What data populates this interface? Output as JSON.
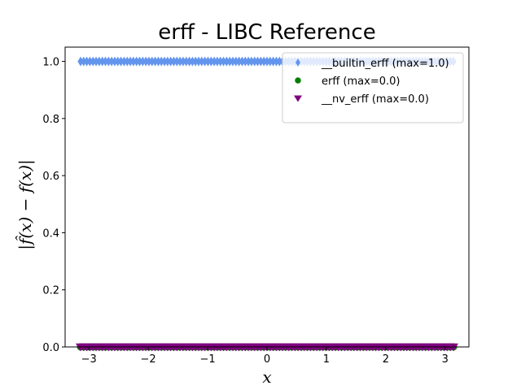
{
  "chart_data": {
    "type": "scatter",
    "title": "erff - LIBC Reference",
    "xlabel": "x",
    "ylabel": "|f̂(x) − f(x)|",
    "xlim": [
      -3.4,
      3.4
    ],
    "ylim": [
      0,
      1.05
    ],
    "x_ticks": [
      -3,
      -2,
      -1,
      0,
      1,
      2,
      3
    ],
    "x_tick_labels": [
      "−3",
      "−2",
      "−1",
      "0",
      "1",
      "2",
      "3"
    ],
    "y_ticks": [
      0.0,
      0.2,
      0.4,
      0.6,
      0.8,
      1.0
    ],
    "y_tick_labels": [
      "0.0",
      "0.2",
      "0.4",
      "0.6",
      "0.8",
      "1.0"
    ],
    "grid": false,
    "legend_position": "top-right",
    "x_range": [
      -3.14,
      3.14
    ],
    "series": [
      {
        "name": "__builtin_erff (max=1.0)",
        "marker": "thin-diamond",
        "color": "#6495ED",
        "y_value": 1.0
      },
      {
        "name": "erff (max=0.0)",
        "marker": "circle",
        "color": "#008000",
        "y_value": 0.0
      },
      {
        "name": "__nv_erff (max=0.0)",
        "marker": "triangle-down",
        "color": "#800080",
        "y_value": 0.0
      }
    ]
  }
}
